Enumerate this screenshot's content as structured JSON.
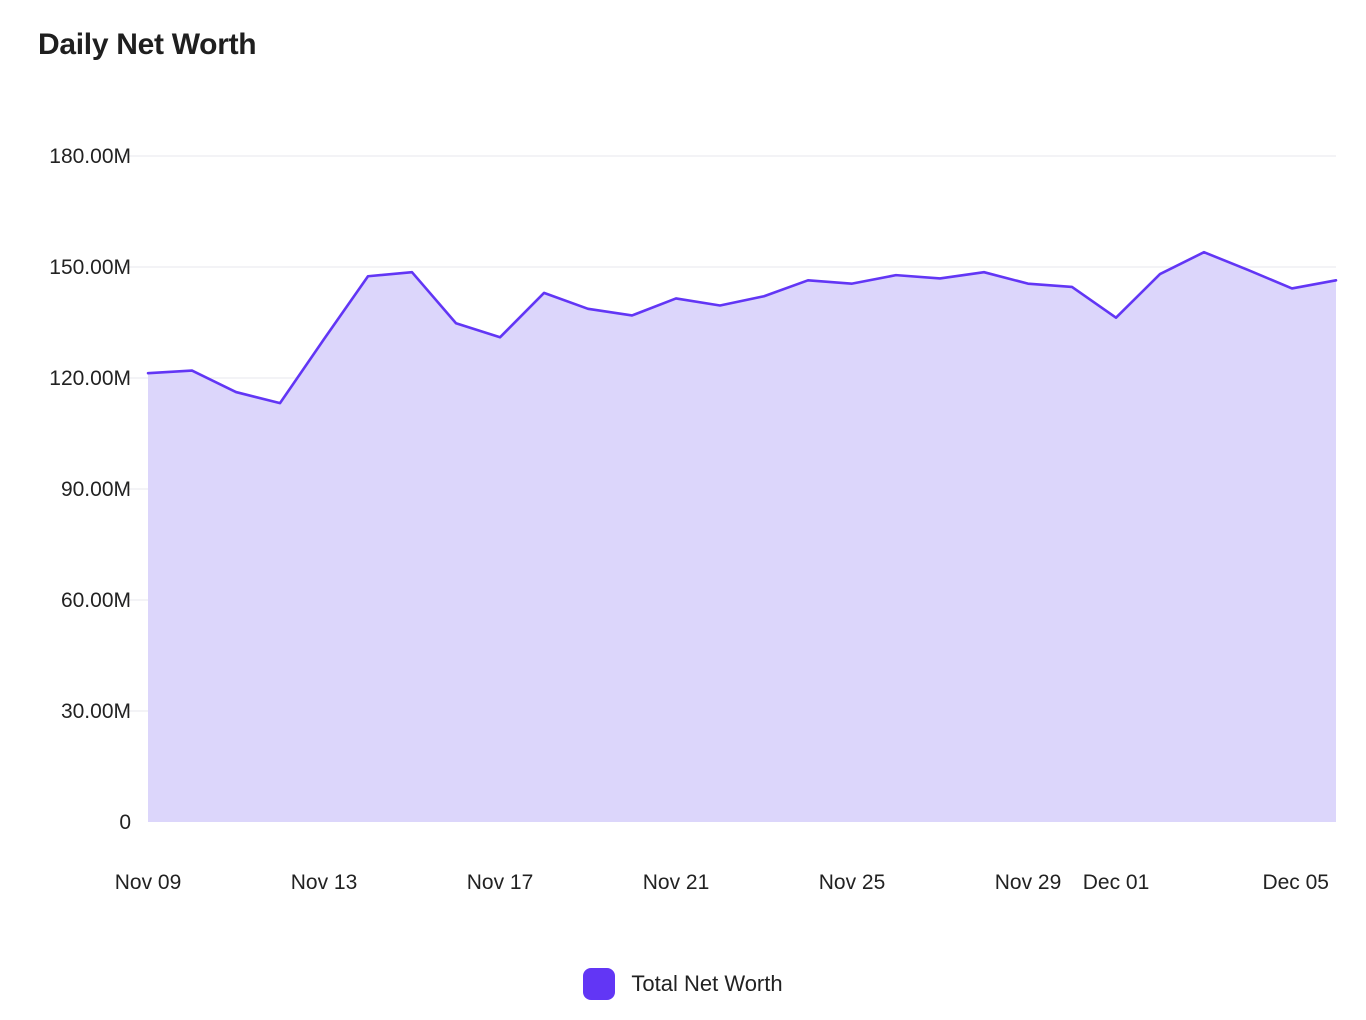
{
  "chart_data": {
    "type": "area",
    "title": "Daily Net Worth",
    "xlabel": "",
    "ylabel": "",
    "ylim": [
      0,
      180000000
    ],
    "y_ticks": [
      0,
      30000000,
      60000000,
      90000000,
      120000000,
      150000000,
      180000000
    ],
    "y_tick_labels": [
      "0",
      "30.00M",
      "60.00M",
      "90.00M",
      "120.00M",
      "150.00M",
      "180.00M"
    ],
    "x_tick_labels": [
      "Nov 09",
      "Nov 13",
      "Nov 17",
      "Nov 21",
      "Nov 25",
      "Nov 29",
      "Dec 01",
      "Dec 05"
    ],
    "x_tick_dates": [
      "2023-11-09",
      "2023-11-13",
      "2023-11-17",
      "2023-11-21",
      "2023-11-25",
      "2023-11-29",
      "2023-12-01",
      "2023-12-05"
    ],
    "x": [
      "2023-11-09",
      "2023-11-10",
      "2023-11-11",
      "2023-11-12",
      "2023-11-13",
      "2023-11-14",
      "2023-11-15",
      "2023-11-16",
      "2023-11-17",
      "2023-11-18",
      "2023-11-19",
      "2023-11-20",
      "2023-11-21",
      "2023-11-22",
      "2023-11-23",
      "2023-11-24",
      "2023-11-25",
      "2023-11-26",
      "2023-11-27",
      "2023-11-28",
      "2023-11-29",
      "2023-11-30",
      "2023-12-01",
      "2023-12-02",
      "2023-12-03",
      "2023-12-04",
      "2023-12-05",
      "2023-12-06"
    ],
    "grid": true,
    "legend_position": "bottom-center",
    "series": [
      {
        "name": "Total Net Worth",
        "color": "#6236f5",
        "fill": "#dcd6fb",
        "values": [
          121300000,
          122000000,
          116200000,
          113200000,
          130500000,
          147500000,
          148600000,
          134800000,
          131000000,
          143000000,
          138700000,
          136900000,
          141500000,
          139600000,
          142100000,
          146400000,
          145500000,
          147800000,
          146900000,
          148600000,
          145500000,
          144600000,
          136300000,
          148100000,
          154000000,
          149200000,
          144200000,
          146400000
        ]
      }
    ]
  }
}
